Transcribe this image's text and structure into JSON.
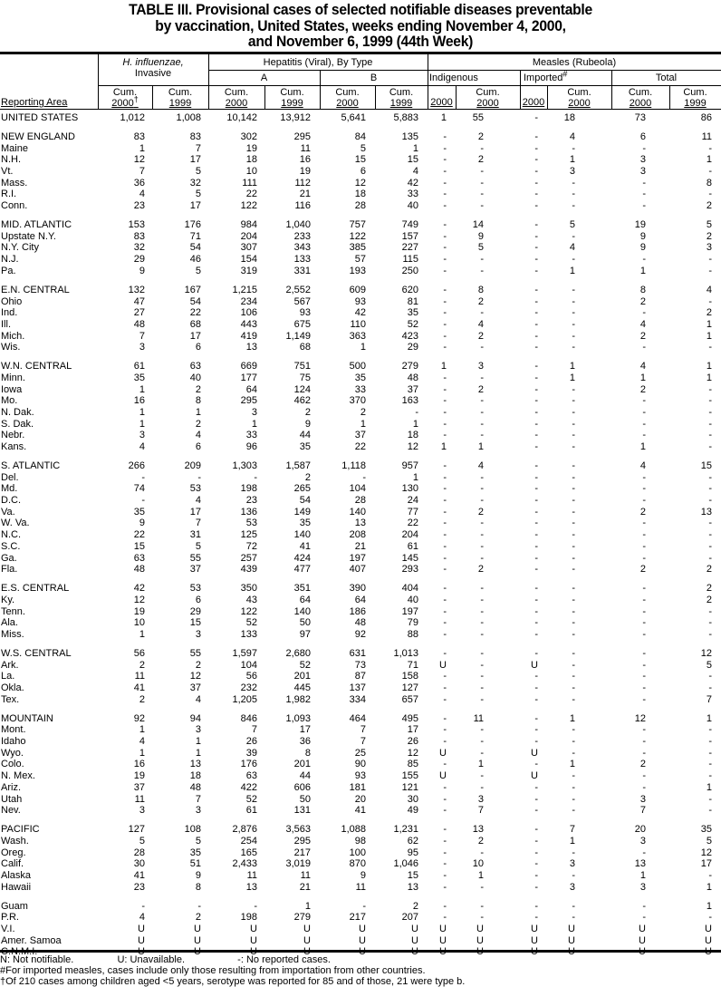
{
  "title": {
    "line1": "TABLE III. Provisional cases of selected notifiable diseases preventable",
    "line2": "by vaccination, United States, weeks ending November 4, 2000,",
    "line3": "and November 6, 1999 (44th Week)"
  },
  "header": {
    "reporting_area": "Reporting Area",
    "hinf_1": "H. influenzae,",
    "hinf_2": "Invasive",
    "hep": "Hepatitis (Viral), By Type",
    "hep_a": "A",
    "hep_b": "B",
    "measles": "Measles (Rubeola)",
    "indigenous": "Indigenous",
    "imported": "Imported",
    "imported_mark": "#",
    "total": "Total",
    "cum": "Cum.",
    "y2000": "2000",
    "y1999": "1999",
    "dagger": "†"
  },
  "groups": [
    {
      "rows": [
        [
          "UNITED STATES",
          "1,012",
          "1,008",
          "10,142",
          "13,912",
          "5,641",
          "5,883",
          "1",
          "55",
          "-",
          "18",
          "73",
          "86"
        ]
      ]
    },
    {
      "rows": [
        [
          "NEW ENGLAND",
          "83",
          "83",
          "302",
          "295",
          "84",
          "135",
          "-",
          "2",
          "-",
          "4",
          "6",
          "11"
        ],
        [
          "Maine",
          "1",
          "7",
          "19",
          "11",
          "5",
          "1",
          "-",
          "-",
          "-",
          "-",
          "-",
          "-"
        ],
        [
          "N.H.",
          "12",
          "17",
          "18",
          "16",
          "15",
          "15",
          "-",
          "2",
          "-",
          "1",
          "3",
          "1"
        ],
        [
          "Vt.",
          "7",
          "5",
          "10",
          "19",
          "6",
          "4",
          "-",
          "-",
          "-",
          "3",
          "3",
          "-"
        ],
        [
          "Mass.",
          "36",
          "32",
          "111",
          "112",
          "12",
          "42",
          "-",
          "-",
          "-",
          "-",
          "-",
          "8"
        ],
        [
          "R.I.",
          "4",
          "5",
          "22",
          "21",
          "18",
          "33",
          "-",
          "-",
          "-",
          "-",
          "-",
          "-"
        ],
        [
          "Conn.",
          "23",
          "17",
          "122",
          "116",
          "28",
          "40",
          "-",
          "-",
          "-",
          "-",
          "-",
          "2"
        ]
      ]
    },
    {
      "rows": [
        [
          "MID. ATLANTIC",
          "153",
          "176",
          "984",
          "1,040",
          "757",
          "749",
          "-",
          "14",
          "-",
          "5",
          "19",
          "5"
        ],
        [
          "Upstate N.Y.",
          "83",
          "71",
          "204",
          "233",
          "122",
          "157",
          "-",
          "9",
          "-",
          "-",
          "9",
          "2"
        ],
        [
          "N.Y. City",
          "32",
          "54",
          "307",
          "343",
          "385",
          "227",
          "-",
          "5",
          "-",
          "4",
          "9",
          "3"
        ],
        [
          "N.J.",
          "29",
          "46",
          "154",
          "133",
          "57",
          "115",
          "-",
          "-",
          "-",
          "-",
          "-",
          "-"
        ],
        [
          "Pa.",
          "9",
          "5",
          "319",
          "331",
          "193",
          "250",
          "-",
          "-",
          "-",
          "1",
          "1",
          "-"
        ]
      ]
    },
    {
      "rows": [
        [
          "E.N. CENTRAL",
          "132",
          "167",
          "1,215",
          "2,552",
          "609",
          "620",
          "-",
          "8",
          "-",
          "-",
          "8",
          "4"
        ],
        [
          "Ohio",
          "47",
          "54",
          "234",
          "567",
          "93",
          "81",
          "-",
          "2",
          "-",
          "-",
          "2",
          "-"
        ],
        [
          "Ind.",
          "27",
          "22",
          "106",
          "93",
          "42",
          "35",
          "-",
          "-",
          "-",
          "-",
          "-",
          "2"
        ],
        [
          "Ill.",
          "48",
          "68",
          "443",
          "675",
          "110",
          "52",
          "-",
          "4",
          "-",
          "-",
          "4",
          "1"
        ],
        [
          "Mich.",
          "7",
          "17",
          "419",
          "1,149",
          "363",
          "423",
          "-",
          "2",
          "-",
          "-",
          "2",
          "1"
        ],
        [
          "Wis.",
          "3",
          "6",
          "13",
          "68",
          "1",
          "29",
          "-",
          "-",
          "-",
          "-",
          "-",
          "-"
        ]
      ]
    },
    {
      "rows": [
        [
          "W.N. CENTRAL",
          "61",
          "63",
          "669",
          "751",
          "500",
          "279",
          "1",
          "3",
          "-",
          "1",
          "4",
          "1"
        ],
        [
          "Minn.",
          "35",
          "40",
          "177",
          "75",
          "35",
          "48",
          "-",
          "-",
          "-",
          "1",
          "1",
          "1"
        ],
        [
          "Iowa",
          "1",
          "2",
          "64",
          "124",
          "33",
          "37",
          "-",
          "2",
          "-",
          "-",
          "2",
          "-"
        ],
        [
          "Mo.",
          "16",
          "8",
          "295",
          "462",
          "370",
          "163",
          "-",
          "-",
          "-",
          "-",
          "-",
          "-"
        ],
        [
          "N. Dak.",
          "1",
          "1",
          "3",
          "2",
          "2",
          "-",
          "-",
          "-",
          "-",
          "-",
          "-",
          "-"
        ],
        [
          "S. Dak.",
          "1",
          "2",
          "1",
          "9",
          "1",
          "1",
          "-",
          "-",
          "-",
          "-",
          "-",
          "-"
        ],
        [
          "Nebr.",
          "3",
          "4",
          "33",
          "44",
          "37",
          "18",
          "-",
          "-",
          "-",
          "-",
          "-",
          "-"
        ],
        [
          "Kans.",
          "4",
          "6",
          "96",
          "35",
          "22",
          "12",
          "1",
          "1",
          "-",
          "-",
          "1",
          "-"
        ]
      ]
    },
    {
      "rows": [
        [
          "S. ATLANTIC",
          "266",
          "209",
          "1,303",
          "1,587",
          "1,118",
          "957",
          "-",
          "4",
          "-",
          "-",
          "4",
          "15"
        ],
        [
          "Del.",
          "-",
          "-",
          "-",
          "2",
          "-",
          "1",
          "-",
          "-",
          "-",
          "-",
          "-",
          "-"
        ],
        [
          "Md.",
          "74",
          "53",
          "198",
          "265",
          "104",
          "130",
          "-",
          "-",
          "-",
          "-",
          "-",
          "-"
        ],
        [
          "D.C.",
          "-",
          "4",
          "23",
          "54",
          "28",
          "24",
          "-",
          "-",
          "-",
          "-",
          "-",
          "-"
        ],
        [
          "Va.",
          "35",
          "17",
          "136",
          "149",
          "140",
          "77",
          "-",
          "2",
          "-",
          "-",
          "2",
          "13"
        ],
        [
          "W. Va.",
          "9",
          "7",
          "53",
          "35",
          "13",
          "22",
          "-",
          "-",
          "-",
          "-",
          "-",
          "-"
        ],
        [
          "N.C.",
          "22",
          "31",
          "125",
          "140",
          "208",
          "204",
          "-",
          "-",
          "-",
          "-",
          "-",
          "-"
        ],
        [
          "S.C.",
          "15",
          "5",
          "72",
          "41",
          "21",
          "61",
          "-",
          "-",
          "-",
          "-",
          "-",
          "-"
        ],
        [
          "Ga.",
          "63",
          "55",
          "257",
          "424",
          "197",
          "145",
          "-",
          "-",
          "-",
          "-",
          "-",
          "-"
        ],
        [
          "Fla.",
          "48",
          "37",
          "439",
          "477",
          "407",
          "293",
          "-",
          "2",
          "-",
          "-",
          "2",
          "2"
        ]
      ]
    },
    {
      "rows": [
        [
          "E.S. CENTRAL",
          "42",
          "53",
          "350",
          "351",
          "390",
          "404",
          "-",
          "-",
          "-",
          "-",
          "-",
          "2"
        ],
        [
          "Ky.",
          "12",
          "6",
          "43",
          "64",
          "64",
          "40",
          "-",
          "-",
          "-",
          "-",
          "-",
          "2"
        ],
        [
          "Tenn.",
          "19",
          "29",
          "122",
          "140",
          "186",
          "197",
          "-",
          "-",
          "-",
          "-",
          "-",
          "-"
        ],
        [
          "Ala.",
          "10",
          "15",
          "52",
          "50",
          "48",
          "79",
          "-",
          "-",
          "-",
          "-",
          "-",
          "-"
        ],
        [
          "Miss.",
          "1",
          "3",
          "133",
          "97",
          "92",
          "88",
          "-",
          "-",
          "-",
          "-",
          "-",
          "-"
        ]
      ]
    },
    {
      "rows": [
        [
          "W.S. CENTRAL",
          "56",
          "55",
          "1,597",
          "2,680",
          "631",
          "1,013",
          "-",
          "-",
          "-",
          "-",
          "-",
          "12"
        ],
        [
          "Ark.",
          "2",
          "2",
          "104",
          "52",
          "73",
          "71",
          "U",
          "-",
          "U",
          "-",
          "-",
          "5"
        ],
        [
          "La.",
          "11",
          "12",
          "56",
          "201",
          "87",
          "158",
          "-",
          "-",
          "-",
          "-",
          "-",
          "-"
        ],
        [
          "Okla.",
          "41",
          "37",
          "232",
          "445",
          "137",
          "127",
          "-",
          "-",
          "-",
          "-",
          "-",
          "-"
        ],
        [
          "Tex.",
          "2",
          "4",
          "1,205",
          "1,982",
          "334",
          "657",
          "-",
          "-",
          "-",
          "-",
          "-",
          "7"
        ]
      ]
    },
    {
      "rows": [
        [
          "MOUNTAIN",
          "92",
          "94",
          "846",
          "1,093",
          "464",
          "495",
          "-",
          "11",
          "-",
          "1",
          "12",
          "1"
        ],
        [
          "Mont.",
          "1",
          "3",
          "7",
          "17",
          "7",
          "17",
          "-",
          "-",
          "-",
          "-",
          "-",
          "-"
        ],
        [
          "Idaho",
          "4",
          "1",
          "26",
          "36",
          "7",
          "26",
          "-",
          "-",
          "-",
          "-",
          "-",
          "-"
        ],
        [
          "Wyo.",
          "1",
          "1",
          "39",
          "8",
          "25",
          "12",
          "U",
          "-",
          "U",
          "-",
          "-",
          "-"
        ],
        [
          "Colo.",
          "16",
          "13",
          "176",
          "201",
          "90",
          "85",
          "-",
          "1",
          "-",
          "1",
          "2",
          "-"
        ],
        [
          "N. Mex.",
          "19",
          "18",
          "63",
          "44",
          "93",
          "155",
          "U",
          "-",
          "U",
          "-",
          "-",
          "-"
        ],
        [
          "Ariz.",
          "37",
          "48",
          "422",
          "606",
          "181",
          "121",
          "-",
          "-",
          "-",
          "-",
          "-",
          "1"
        ],
        [
          "Utah",
          "11",
          "7",
          "52",
          "50",
          "20",
          "30",
          "-",
          "3",
          "-",
          "-",
          "3",
          "-"
        ],
        [
          "Nev.",
          "3",
          "3",
          "61",
          "131",
          "41",
          "49",
          "-",
          "7",
          "-",
          "-",
          "7",
          "-"
        ]
      ]
    },
    {
      "rows": [
        [
          "PACIFIC",
          "127",
          "108",
          "2,876",
          "3,563",
          "1,088",
          "1,231",
          "-",
          "13",
          "-",
          "7",
          "20",
          "35"
        ],
        [
          "Wash.",
          "5",
          "5",
          "254",
          "295",
          "98",
          "62",
          "-",
          "2",
          "-",
          "1",
          "3",
          "5"
        ],
        [
          "Oreg.",
          "28",
          "35",
          "165",
          "217",
          "100",
          "95",
          "-",
          "-",
          "-",
          "-",
          "-",
          "12"
        ],
        [
          "Calif.",
          "30",
          "51",
          "2,433",
          "3,019",
          "870",
          "1,046",
          "-",
          "10",
          "-",
          "3",
          "13",
          "17"
        ],
        [
          "Alaska",
          "41",
          "9",
          "11",
          "11",
          "9",
          "15",
          "-",
          "1",
          "-",
          "-",
          "1",
          "-"
        ],
        [
          "Hawaii",
          "23",
          "8",
          "13",
          "21",
          "11",
          "13",
          "-",
          "-",
          "-",
          "3",
          "3",
          "1"
        ]
      ]
    },
    {
      "rows": [
        [
          "Guam",
          "-",
          "-",
          "-",
          "1",
          "-",
          "2",
          "-",
          "-",
          "-",
          "-",
          "-",
          "1"
        ],
        [
          "P.R.",
          "4",
          "2",
          "198",
          "279",
          "217",
          "207",
          "-",
          "-",
          "-",
          "-",
          "-",
          "-"
        ],
        [
          "V.I.",
          "U",
          "U",
          "U",
          "U",
          "U",
          "U",
          "U",
          "U",
          "U",
          "U",
          "U",
          "U"
        ],
        [
          "Amer. Samoa",
          "U",
          "U",
          "U",
          "U",
          "U",
          "U",
          "U",
          "U",
          "U",
          "U",
          "U",
          "U"
        ],
        [
          "C.N.M.I.",
          "U",
          "U",
          "U",
          "U",
          "U",
          "U",
          "U",
          "U",
          "U",
          "U",
          "U",
          "U"
        ]
      ]
    }
  ],
  "footnotes": {
    "legend_n": "N: Not notifiable.",
    "legend_u": "U: Unavailable.",
    "legend_dash": "-: No reported cases.",
    "imported": "#For imported measles, cases include only those resulting from importation from other countries.",
    "hinf": "†Of 210 cases among children aged <5 years, serotype was reported for 85 and of those, 21 were type b."
  }
}
